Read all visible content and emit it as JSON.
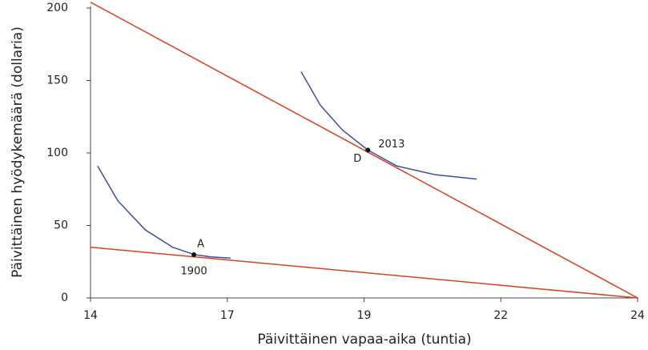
{
  "chart_data": {
    "type": "line",
    "xlabel": "Päivittäinen vapaa-aika (tuntia)",
    "ylabel": "Päivittäinen hyödykemäärä (dollaria)",
    "xlim": [
      14,
      24
    ],
    "ylim": [
      0,
      200
    ],
    "xticks": [
      14,
      {
        "value": 16.5,
        "label": "17"
      },
      19,
      {
        "value": 21.5,
        "label": "22"
      },
      24
    ],
    "yticks": [
      0,
      50,
      100,
      150,
      200
    ],
    "series": [
      {
        "color": "#d9401f",
        "x": [
          14,
          24
        ],
        "values": [
          204,
          0
        ]
      },
      {
        "color": "#d9401f",
        "x": [
          14,
          24
        ],
        "values": [
          35,
          0
        ]
      },
      {
        "color": "#3d4fa3",
        "x": [
          17.85,
          18.2,
          18.6,
          19.07,
          19.6,
          20.3,
          21.06
        ],
        "values": [
          156,
          133,
          116,
          102,
          91,
          85,
          82
        ]
      },
      {
        "color": "#3d4fa3",
        "x": [
          14.13,
          14.5,
          15,
          15.5,
          15.89,
          16.2,
          16.56
        ],
        "values": [
          91,
          67,
          47,
          35,
          30,
          28.3,
          27.5
        ]
      }
    ],
    "points": [
      {
        "label": "A",
        "year": "1900",
        "x": 15.89,
        "value": 29.8
      },
      {
        "label": "D",
        "year": "2013",
        "x": 19.07,
        "value": 102
      }
    ],
    "point_color": "#111"
  }
}
